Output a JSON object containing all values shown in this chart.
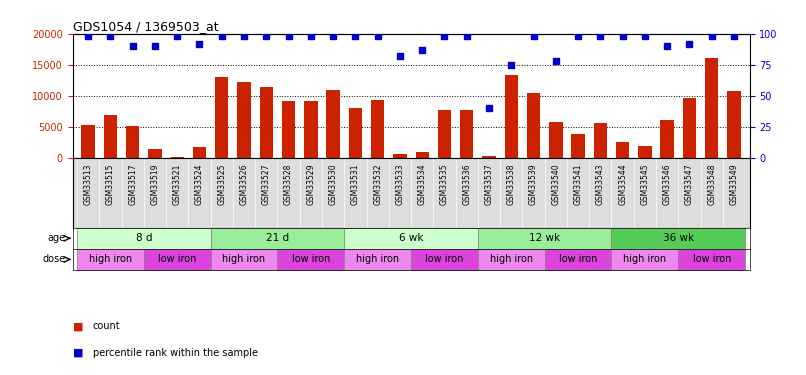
{
  "title": "GDS1054 / 1369503_at",
  "samples": [
    "GSM33513",
    "GSM33515",
    "GSM33517",
    "GSM33519",
    "GSM33521",
    "GSM33524",
    "GSM33525",
    "GSM33526",
    "GSM33527",
    "GSM33528",
    "GSM33529",
    "GSM33530",
    "GSM33531",
    "GSM33532",
    "GSM33533",
    "GSM33534",
    "GSM33535",
    "GSM33536",
    "GSM33537",
    "GSM33538",
    "GSM33539",
    "GSM33540",
    "GSM33541",
    "GSM33543",
    "GSM33544",
    "GSM33545",
    "GSM33546",
    "GSM33547",
    "GSM33548",
    "GSM33549"
  ],
  "counts": [
    5300,
    7000,
    5100,
    1400,
    100,
    1800,
    13000,
    12300,
    11500,
    9200,
    9200,
    11000,
    8000,
    9300,
    700,
    1000,
    7800,
    7700,
    300,
    13300,
    10500,
    5800,
    3800,
    5700,
    2600,
    2000,
    6100,
    9700,
    16100,
    10800
  ],
  "percentile": [
    98,
    98,
    90,
    90,
    98,
    92,
    98,
    98,
    98,
    98,
    98,
    98,
    98,
    98,
    82,
    87,
    98,
    98,
    40,
    75,
    98,
    78,
    98,
    98,
    98,
    98,
    90,
    92,
    98,
    98
  ],
  "ylim_left": [
    0,
    20000
  ],
  "ylim_right": [
    0,
    100
  ],
  "yticks_left": [
    0,
    5000,
    10000,
    15000,
    20000
  ],
  "yticks_right": [
    0,
    25,
    50,
    75,
    100
  ],
  "bar_color": "#cc2200",
  "dot_color": "#0000cc",
  "age_groups": [
    {
      "label": "8 d",
      "start": 0,
      "end": 6,
      "color": "#ccffcc"
    },
    {
      "label": "21 d",
      "start": 6,
      "end": 12,
      "color": "#99ee99"
    },
    {
      "label": "6 wk",
      "start": 12,
      "end": 18,
      "color": "#ccffcc"
    },
    {
      "label": "12 wk",
      "start": 18,
      "end": 24,
      "color": "#99ee99"
    },
    {
      "label": "36 wk",
      "start": 24,
      "end": 30,
      "color": "#55cc55"
    }
  ],
  "dose_groups": [
    {
      "label": "high iron",
      "start": 0,
      "end": 3,
      "color": "#ee88ee"
    },
    {
      "label": "low iron",
      "start": 3,
      "end": 6,
      "color": "#dd44dd"
    },
    {
      "label": "high iron",
      "start": 6,
      "end": 9,
      "color": "#ee88ee"
    },
    {
      "label": "low iron",
      "start": 9,
      "end": 12,
      "color": "#dd44dd"
    },
    {
      "label": "high iron",
      "start": 12,
      "end": 15,
      "color": "#ee88ee"
    },
    {
      "label": "low iron",
      "start": 15,
      "end": 18,
      "color": "#dd44dd"
    },
    {
      "label": "high iron",
      "start": 18,
      "end": 21,
      "color": "#ee88ee"
    },
    {
      "label": "low iron",
      "start": 21,
      "end": 24,
      "color": "#dd44dd"
    },
    {
      "label": "high iron",
      "start": 24,
      "end": 27,
      "color": "#ee88ee"
    },
    {
      "label": "low iron",
      "start": 27,
      "end": 30,
      "color": "#dd44dd"
    }
  ],
  "background_color": "#ffffff",
  "tick_bg_color": "#dddddd",
  "legend_count_color": "#cc2200",
  "legend_dot_color": "#0000cc"
}
